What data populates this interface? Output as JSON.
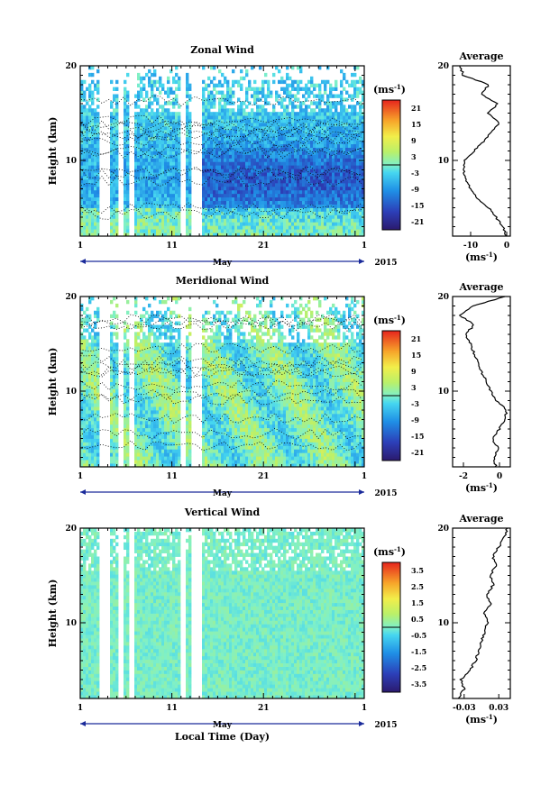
{
  "chart_data": [
    {
      "type": "heatmap",
      "title": "Zonal Wind",
      "xlabel": "May",
      "ylabel": "Height (km)",
      "year_label": "2015",
      "x_ticks": [
        "1",
        "11",
        "21",
        "1"
      ],
      "y_ticks": [
        "10",
        "20"
      ],
      "xlim": [
        1,
        32
      ],
      "ylim": [
        2,
        20
      ],
      "colorbar": {
        "unit": "(ms-1)",
        "ticks": [
          "21",
          "15",
          "9",
          "3",
          "-3",
          "-9",
          "-15",
          "-21"
        ],
        "range": [
          -24,
          24
        ]
      },
      "average": {
        "title": "Average",
        "xlabel": "(ms-1)",
        "x_ticks": [
          "-10",
          "0"
        ],
        "xlim": [
          -15,
          1
        ],
        "y_ticks": [
          "10",
          "20"
        ],
        "heights": [
          2,
          3,
          4,
          5,
          6,
          7,
          8,
          9,
          10,
          11,
          12,
          13,
          14,
          15,
          16,
          17,
          18,
          19,
          20
        ],
        "values": [
          0,
          -1,
          -3,
          -5,
          -8,
          -10,
          -11.5,
          -12,
          -11.5,
          -9,
          -6.5,
          -4,
          -2,
          -5,
          -2.5,
          -7,
          -5,
          -12,
          -13
        ]
      }
    },
    {
      "type": "heatmap",
      "title": "Meridional Wind",
      "xlabel": "May",
      "ylabel": "Height (km)",
      "year_label": "2015",
      "x_ticks": [
        "1",
        "11",
        "21",
        "1"
      ],
      "y_ticks": [
        "10",
        "20"
      ],
      "xlim": [
        1,
        32
      ],
      "ylim": [
        2,
        20
      ],
      "colorbar": {
        "unit": "(ms-1)",
        "ticks": [
          "21",
          "15",
          "9",
          "3",
          "-3",
          "-9",
          "-15",
          "-21"
        ],
        "range": [
          -24,
          24
        ]
      },
      "average": {
        "title": "Average",
        "xlabel": "(ms-1)",
        "x_ticks": [
          "-2",
          "0"
        ],
        "xlim": [
          -2.6,
          0.6
        ],
        "y_ticks": [
          "10",
          "20"
        ],
        "heights": [
          2,
          3,
          4,
          5,
          6,
          7,
          8,
          9,
          10,
          11,
          12,
          13,
          14,
          15,
          16,
          17,
          18,
          19,
          20
        ],
        "values": [
          -0.2,
          -0.3,
          -0.1,
          -0.4,
          0.0,
          0.3,
          0.4,
          -0.2,
          -0.5,
          -0.7,
          -1.0,
          -1.2,
          -1.4,
          -1.6,
          -1.9,
          -1.4,
          -2.2,
          -1.5,
          0.3
        ]
      }
    },
    {
      "type": "heatmap",
      "title": "Vertical Wind",
      "xlabel": "May",
      "ylabel": "Height (km)",
      "x_axis_title": "Local Time (Day)",
      "year_label": "2015",
      "x_ticks": [
        "1",
        "11",
        "21",
        "1"
      ],
      "y_ticks": [
        "10",
        "20"
      ],
      "xlim": [
        1,
        32
      ],
      "ylim": [
        2,
        20
      ],
      "colorbar": {
        "unit": "(ms-1)",
        "ticks": [
          "3.5",
          "2.5",
          "1.5",
          "0.5",
          "-0.5",
          "-1.5",
          "-2.5",
          "-3.5"
        ],
        "range": [
          -4,
          4
        ]
      },
      "average": {
        "title": "Average",
        "xlabel": "(ms-1)",
        "x_ticks": [
          "-0.03",
          "0.03"
        ],
        "xlim": [
          -0.05,
          0.05
        ],
        "y_ticks": [
          "10",
          "20"
        ],
        "heights": [
          2,
          3,
          4,
          5,
          6,
          7,
          8,
          9,
          10,
          11,
          12,
          13,
          14,
          15,
          16,
          17,
          18,
          19,
          20
        ],
        "values": [
          -0.04,
          -0.03,
          -0.035,
          -0.02,
          -0.01,
          -0.005,
          0.0,
          0.005,
          0.01,
          0.005,
          0.015,
          0.01,
          0.02,
          0.015,
          0.025,
          0.02,
          0.03,
          0.04,
          0.045
        ]
      }
    }
  ]
}
